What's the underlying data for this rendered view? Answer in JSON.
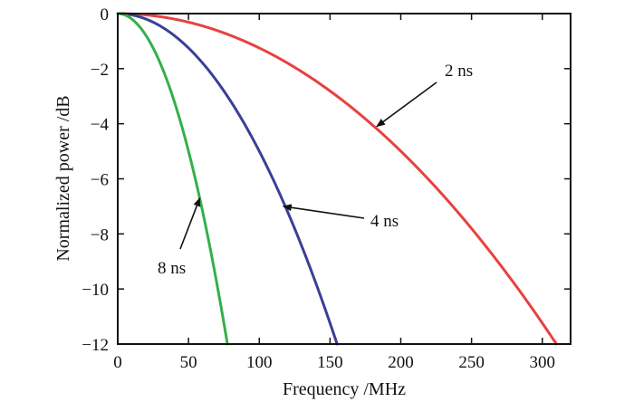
{
  "chart_data": {
    "type": "line",
    "title": "",
    "xlabel": "Frequency /MHz",
    "ylabel": "Normalized power /dB",
    "xlim": [
      0,
      320
    ],
    "ylim": [
      -12,
      0
    ],
    "xticks": [
      0,
      50,
      100,
      150,
      200,
      250,
      300
    ],
    "yticks": [
      0,
      -2,
      -4,
      -6,
      -8,
      -10,
      -12
    ],
    "xtick_labels": [
      "0",
      "50",
      "100",
      "150",
      "200",
      "250",
      "300"
    ],
    "ytick_labels": [
      "0",
      "−2",
      "−4",
      "−6",
      "−8",
      "−10",
      "−12"
    ],
    "grid": false,
    "series": [
      {
        "name": "2 ns",
        "color": "#e8413e",
        "x": [
          0,
          50,
          100,
          150,
          200,
          250,
          310
        ],
        "y": [
          0,
          -0.31,
          -1.25,
          -2.81,
          -4.99,
          -7.8,
          -12
        ]
      },
      {
        "name": "4 ns",
        "color": "#3a3f97",
        "x": [
          0,
          25,
          50,
          75,
          100,
          125,
          155
        ],
        "y": [
          0,
          -0.31,
          -1.25,
          -2.81,
          -4.99,
          -7.8,
          -12
        ]
      },
      {
        "name": "8 ns",
        "color": "#34b04a",
        "x": [
          0,
          12.5,
          25,
          37.5,
          50,
          62.5,
          77.5
        ],
        "y": [
          0,
          -0.31,
          -1.25,
          -2.81,
          -4.99,
          -7.8,
          -12
        ]
      }
    ],
    "annotations": [
      {
        "text": "2 ns",
        "series": "2 ns",
        "target": [
          183,
          -4.1
        ]
      },
      {
        "text": "4 ns",
        "series": "4 ns",
        "target": [
          117,
          -7.0
        ]
      },
      {
        "text": "8 ns",
        "series": "8 ns",
        "target": [
          58,
          -6.7
        ]
      }
    ]
  }
}
